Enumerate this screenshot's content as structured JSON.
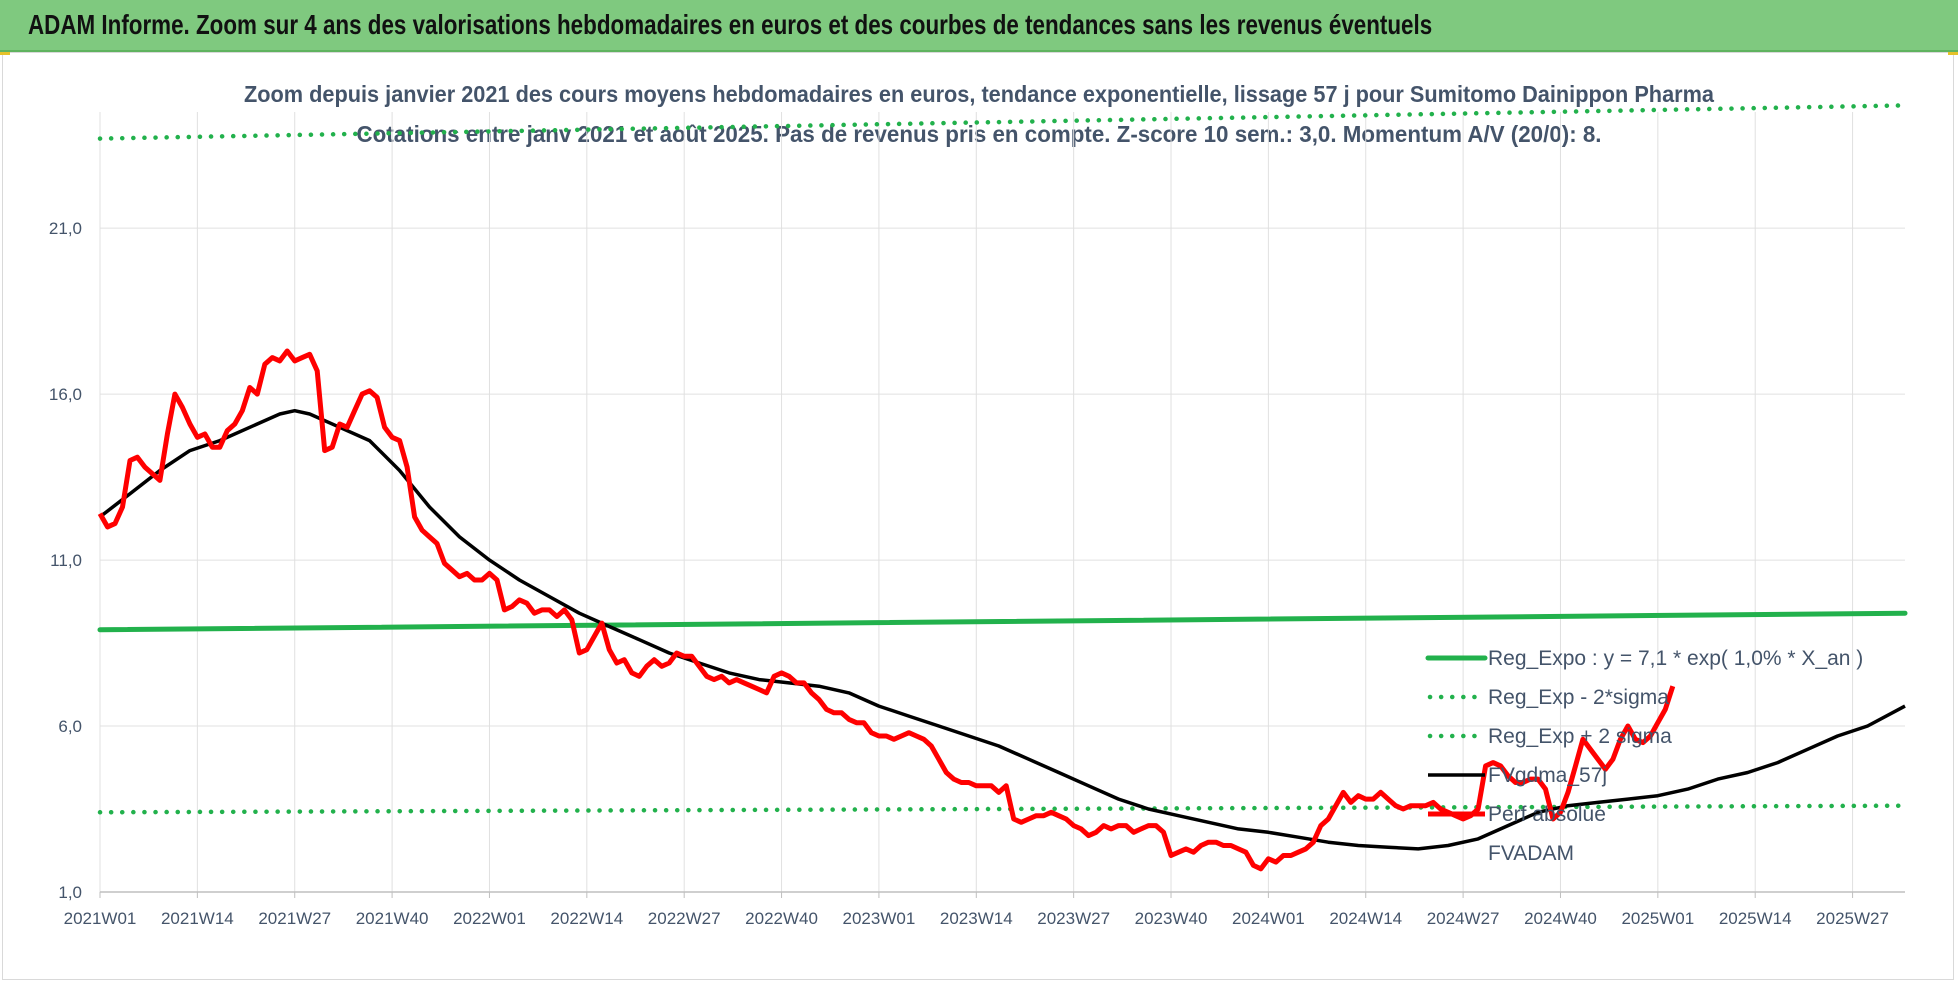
{
  "header": {
    "title": "ADAM Informe. Zoom sur 4 ans des valorisations hebdomadaires en euros et des courbes de tendances sans les revenus éventuels"
  },
  "colors": {
    "banner": "#7fc97f",
    "price": "#ff0000",
    "fv": "#000000",
    "reg": "#22b14c",
    "text": "#44546a",
    "grid": "#e0e0e0"
  },
  "chart_data": {
    "type": "line",
    "title": "Zoom depuis janvier 2021 des cours moyens hebdomadaires en euros, tendance exponentielle, lissage 57 j pour Sumitomo Dainippon Pharma",
    "subtitle": "Cotations entre janv 2021 et août 2025. Pas de revenus pris en compte. Z-score 10 sem.: 3,0. Momentum A/V (20/0): 8.",
    "xlabel": "",
    "ylabel": "",
    "ylim": [
      1,
      24.5
    ],
    "y_ticks": [
      "1,0",
      "6,0",
      "11,0",
      "16,0",
      "21,0"
    ],
    "y_tick_values": [
      1,
      6,
      11,
      16,
      21
    ],
    "x_ticks": [
      "2021W01",
      "2021W14",
      "2021W27",
      "2021W40",
      "2022W01",
      "2022W14",
      "2022W27",
      "2022W40",
      "2023W01",
      "2023W14",
      "2023W27",
      "2023W40",
      "2024W01",
      "2024W14",
      "2024W27",
      "2024W40",
      "2025W01",
      "2025W14",
      "2025W27"
    ],
    "x_tick_weeks": [
      0,
      13,
      26,
      39,
      52,
      65,
      78,
      91,
      104,
      117,
      130,
      143,
      156,
      169,
      182,
      195,
      208,
      221,
      234
    ],
    "x_max_week": 241,
    "grid": true,
    "legend_position": "right",
    "series": [
      {
        "name": "Reg_Expo : y = 7,1 * exp( 1,0% *  X_an )",
        "style": "solid",
        "color": "#22b14c",
        "points": [
          [
            0,
            8.9
          ],
          [
            241,
            9.4
          ]
        ]
      },
      {
        "name": "Reg_Exp - 2*sigma",
        "style": "dotted",
        "color": "#22b14c",
        "points": [
          [
            0,
            3.4
          ],
          [
            241,
            3.6
          ]
        ]
      },
      {
        "name": "Reg_Exp + 2 sigma",
        "style": "dotted",
        "color": "#22b14c",
        "points": [
          [
            0,
            23.7
          ],
          [
            241,
            24.7
          ]
        ]
      },
      {
        "name": "FVgdma_57j",
        "style": "solid",
        "color": "#000000",
        "points": [
          [
            0,
            12.3
          ],
          [
            4,
            13.0
          ],
          [
            8,
            13.7
          ],
          [
            12,
            14.3
          ],
          [
            16,
            14.6
          ],
          [
            20,
            15.0
          ],
          [
            24,
            15.4
          ],
          [
            26,
            15.5
          ],
          [
            28,
            15.4
          ],
          [
            32,
            15.0
          ],
          [
            36,
            14.6
          ],
          [
            40,
            13.7
          ],
          [
            44,
            12.6
          ],
          [
            48,
            11.7
          ],
          [
            52,
            11.0
          ],
          [
            56,
            10.4
          ],
          [
            60,
            9.9
          ],
          [
            64,
            9.4
          ],
          [
            68,
            9.0
          ],
          [
            72,
            8.6
          ],
          [
            76,
            8.2
          ],
          [
            80,
            7.9
          ],
          [
            84,
            7.6
          ],
          [
            88,
            7.4
          ],
          [
            92,
            7.3
          ],
          [
            96,
            7.2
          ],
          [
            100,
            7.0
          ],
          [
            104,
            6.6
          ],
          [
            108,
            6.3
          ],
          [
            112,
            6.0
          ],
          [
            116,
            5.7
          ],
          [
            120,
            5.4
          ],
          [
            124,
            5.0
          ],
          [
            128,
            4.6
          ],
          [
            132,
            4.2
          ],
          [
            136,
            3.8
          ],
          [
            140,
            3.5
          ],
          [
            144,
            3.3
          ],
          [
            148,
            3.1
          ],
          [
            152,
            2.9
          ],
          [
            156,
            2.8
          ],
          [
            160,
            2.65
          ],
          [
            164,
            2.5
          ],
          [
            168,
            2.4
          ],
          [
            172,
            2.35
          ],
          [
            176,
            2.3
          ],
          [
            180,
            2.4
          ],
          [
            184,
            2.6
          ],
          [
            188,
            3.0
          ],
          [
            192,
            3.4
          ],
          [
            196,
            3.6
          ],
          [
            200,
            3.7
          ],
          [
            204,
            3.8
          ],
          [
            208,
            3.9
          ],
          [
            212,
            4.1
          ],
          [
            216,
            4.4
          ],
          [
            220,
            4.6
          ],
          [
            224,
            4.9
          ],
          [
            228,
            5.3
          ],
          [
            232,
            5.7
          ],
          [
            236,
            6.0
          ],
          [
            241,
            6.6
          ]
        ]
      },
      {
        "name": "Perf absolue",
        "style": "solid",
        "color": "#ff0000",
        "points": [
          [
            0,
            12.4
          ],
          [
            1,
            12.0
          ],
          [
            2,
            12.1
          ],
          [
            3,
            12.6
          ],
          [
            4,
            14.0
          ],
          [
            5,
            14.1
          ],
          [
            6,
            13.8
          ],
          [
            7,
            13.6
          ],
          [
            8,
            13.4
          ],
          [
            9,
            14.8
          ],
          [
            10,
            16.0
          ],
          [
            11,
            15.6
          ],
          [
            12,
            15.1
          ],
          [
            13,
            14.7
          ],
          [
            14,
            14.8
          ],
          [
            15,
            14.4
          ],
          [
            16,
            14.4
          ],
          [
            17,
            14.9
          ],
          [
            18,
            15.1
          ],
          [
            19,
            15.5
          ],
          [
            20,
            16.2
          ],
          [
            21,
            16.0
          ],
          [
            22,
            16.9
          ],
          [
            23,
            17.1
          ],
          [
            24,
            17.0
          ],
          [
            25,
            17.3
          ],
          [
            26,
            17.0
          ],
          [
            27,
            17.1
          ],
          [
            28,
            17.2
          ],
          [
            29,
            16.7
          ],
          [
            30,
            14.3
          ],
          [
            31,
            14.4
          ],
          [
            32,
            15.1
          ],
          [
            33,
            15.0
          ],
          [
            34,
            15.5
          ],
          [
            35,
            16.0
          ],
          [
            36,
            16.1
          ],
          [
            37,
            15.9
          ],
          [
            38,
            15.0
          ],
          [
            39,
            14.7
          ],
          [
            40,
            14.6
          ],
          [
            41,
            13.8
          ],
          [
            42,
            12.3
          ],
          [
            43,
            11.9
          ],
          [
            44,
            11.7
          ],
          [
            45,
            11.5
          ],
          [
            46,
            10.9
          ],
          [
            47,
            10.7
          ],
          [
            48,
            10.5
          ],
          [
            49,
            10.6
          ],
          [
            50,
            10.4
          ],
          [
            51,
            10.4
          ],
          [
            52,
            10.6
          ],
          [
            53,
            10.4
          ],
          [
            54,
            9.5
          ],
          [
            55,
            9.6
          ],
          [
            56,
            9.8
          ],
          [
            57,
            9.7
          ],
          [
            58,
            9.4
          ],
          [
            59,
            9.5
          ],
          [
            60,
            9.5
          ],
          [
            61,
            9.3
          ],
          [
            62,
            9.5
          ],
          [
            63,
            9.2
          ],
          [
            64,
            8.2
          ],
          [
            65,
            8.3
          ],
          [
            66,
            8.7
          ],
          [
            67,
            9.1
          ],
          [
            68,
            8.3
          ],
          [
            69,
            7.9
          ],
          [
            70,
            8.0
          ],
          [
            71,
            7.6
          ],
          [
            72,
            7.5
          ],
          [
            73,
            7.8
          ],
          [
            74,
            8.0
          ],
          [
            75,
            7.8
          ],
          [
            76,
            7.9
          ],
          [
            77,
            8.2
          ],
          [
            78,
            8.1
          ],
          [
            79,
            8.1
          ],
          [
            80,
            7.8
          ],
          [
            81,
            7.5
          ],
          [
            82,
            7.4
          ],
          [
            83,
            7.5
          ],
          [
            84,
            7.3
          ],
          [
            85,
            7.4
          ],
          [
            86,
            7.3
          ],
          [
            87,
            7.2
          ],
          [
            88,
            7.1
          ],
          [
            89,
            7.0
          ],
          [
            90,
            7.5
          ],
          [
            91,
            7.6
          ],
          [
            92,
            7.5
          ],
          [
            93,
            7.3
          ],
          [
            94,
            7.3
          ],
          [
            95,
            7.0
          ],
          [
            96,
            6.8
          ],
          [
            97,
            6.5
          ],
          [
            98,
            6.4
          ],
          [
            99,
            6.4
          ],
          [
            100,
            6.2
          ],
          [
            101,
            6.1
          ],
          [
            102,
            6.1
          ],
          [
            103,
            5.8
          ],
          [
            104,
            5.7
          ],
          [
            105,
            5.7
          ],
          [
            106,
            5.6
          ],
          [
            107,
            5.7
          ],
          [
            108,
            5.8
          ],
          [
            109,
            5.7
          ],
          [
            110,
            5.6
          ],
          [
            111,
            5.4
          ],
          [
            112,
            5.0
          ],
          [
            113,
            4.6
          ],
          [
            114,
            4.4
          ],
          [
            115,
            4.3
          ],
          [
            116,
            4.3
          ],
          [
            117,
            4.2
          ],
          [
            118,
            4.2
          ],
          [
            119,
            4.2
          ],
          [
            120,
            4.0
          ],
          [
            121,
            4.2
          ],
          [
            122,
            3.2
          ],
          [
            123,
            3.1
          ],
          [
            124,
            3.2
          ],
          [
            125,
            3.3
          ],
          [
            126,
            3.3
          ],
          [
            127,
            3.4
          ],
          [
            128,
            3.3
          ],
          [
            129,
            3.2
          ],
          [
            130,
            3.0
          ],
          [
            131,
            2.9
          ],
          [
            132,
            2.7
          ],
          [
            133,
            2.8
          ],
          [
            134,
            3.0
          ],
          [
            135,
            2.9
          ],
          [
            136,
            3.0
          ],
          [
            137,
            3.0
          ],
          [
            138,
            2.8
          ],
          [
            139,
            2.9
          ],
          [
            140,
            3.0
          ],
          [
            141,
            3.0
          ],
          [
            142,
            2.8
          ],
          [
            143,
            2.1
          ],
          [
            144,
            2.2
          ],
          [
            145,
            2.3
          ],
          [
            146,
            2.2
          ],
          [
            147,
            2.4
          ],
          [
            148,
            2.5
          ],
          [
            149,
            2.5
          ],
          [
            150,
            2.4
          ],
          [
            151,
            2.4
          ],
          [
            152,
            2.3
          ],
          [
            153,
            2.2
          ],
          [
            154,
            1.8
          ],
          [
            155,
            1.7
          ],
          [
            156,
            2.0
          ],
          [
            157,
            1.9
          ],
          [
            158,
            2.1
          ],
          [
            159,
            2.1
          ],
          [
            160,
            2.2
          ],
          [
            161,
            2.3
          ],
          [
            162,
            2.5
          ],
          [
            163,
            3.0
          ],
          [
            164,
            3.2
          ],
          [
            165,
            3.6
          ],
          [
            166,
            4.0
          ],
          [
            167,
            3.7
          ],
          [
            168,
            3.9
          ],
          [
            169,
            3.8
          ],
          [
            170,
            3.8
          ],
          [
            171,
            4.0
          ],
          [
            172,
            3.8
          ],
          [
            173,
            3.6
          ],
          [
            174,
            3.5
          ],
          [
            175,
            3.6
          ],
          [
            176,
            3.6
          ],
          [
            177,
            3.6
          ],
          [
            178,
            3.7
          ],
          [
            179,
            3.5
          ],
          [
            180,
            3.4
          ],
          [
            181,
            3.3
          ],
          [
            182,
            3.2
          ],
          [
            183,
            3.3
          ],
          [
            184,
            3.5
          ],
          [
            185,
            4.8
          ],
          [
            186,
            4.9
          ],
          [
            187,
            4.8
          ],
          [
            188,
            4.5
          ],
          [
            189,
            4.3
          ],
          [
            190,
            4.3
          ],
          [
            191,
            4.4
          ],
          [
            192,
            4.4
          ],
          [
            193,
            4.1
          ],
          [
            194,
            3.2
          ],
          [
            195,
            3.4
          ],
          [
            196,
            4.0
          ],
          [
            197,
            4.8
          ],
          [
            198,
            5.6
          ],
          [
            199,
            5.3
          ],
          [
            200,
            5.0
          ],
          [
            201,
            4.7
          ],
          [
            202,
            5.0
          ],
          [
            203,
            5.6
          ],
          [
            204,
            6.0
          ],
          [
            205,
            5.6
          ],
          [
            206,
            5.5
          ],
          [
            207,
            5.7
          ],
          [
            208,
            6.1
          ],
          [
            209,
            6.5
          ],
          [
            210,
            7.2
          ]
        ]
      },
      {
        "name": "FVADAM",
        "style": "none",
        "color": "#ffffff",
        "points": []
      }
    ]
  }
}
